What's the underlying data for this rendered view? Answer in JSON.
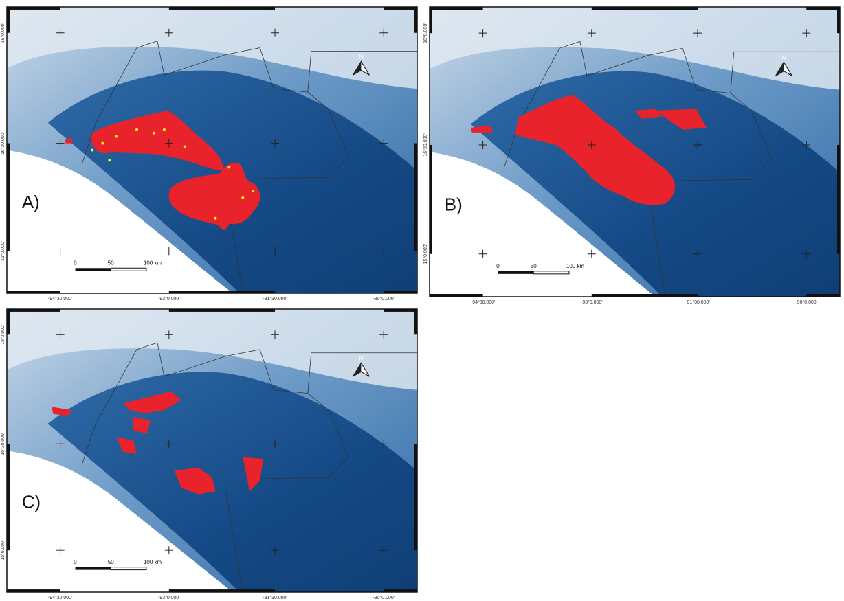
{
  "panels": [
    {
      "label": "A)",
      "north": "N",
      "scale": [
        "0",
        "50",
        "100 km"
      ],
      "lon": [
        "-94°30.000'",
        "-93°0.000'",
        "-91°30.000'",
        "-90°0.000'"
      ],
      "lat": [
        "18°0.000'",
        "16°30.000'",
        "15°0.000'"
      ]
    },
    {
      "label": "B)",
      "north": "N",
      "scale": [
        "0",
        "50",
        "100 km"
      ],
      "lon": [
        "-94°30.000'",
        "-93°0.000'",
        "-91°30.000'",
        "-90°0.000'"
      ],
      "lat": [
        "18°0.000'",
        "16°30.000'",
        "15°0.000'"
      ]
    },
    {
      "label": "C)",
      "north": "N",
      "scale": [
        "0",
        "50",
        "100 km"
      ],
      "lon": [
        "-94°30.000'",
        "-93°0.000'",
        "-91°30.000'",
        "-90°0.000'"
      ],
      "lat": [
        "18°0.000'",
        "16°30.000'",
        "15°0.000'"
      ]
    }
  ]
}
